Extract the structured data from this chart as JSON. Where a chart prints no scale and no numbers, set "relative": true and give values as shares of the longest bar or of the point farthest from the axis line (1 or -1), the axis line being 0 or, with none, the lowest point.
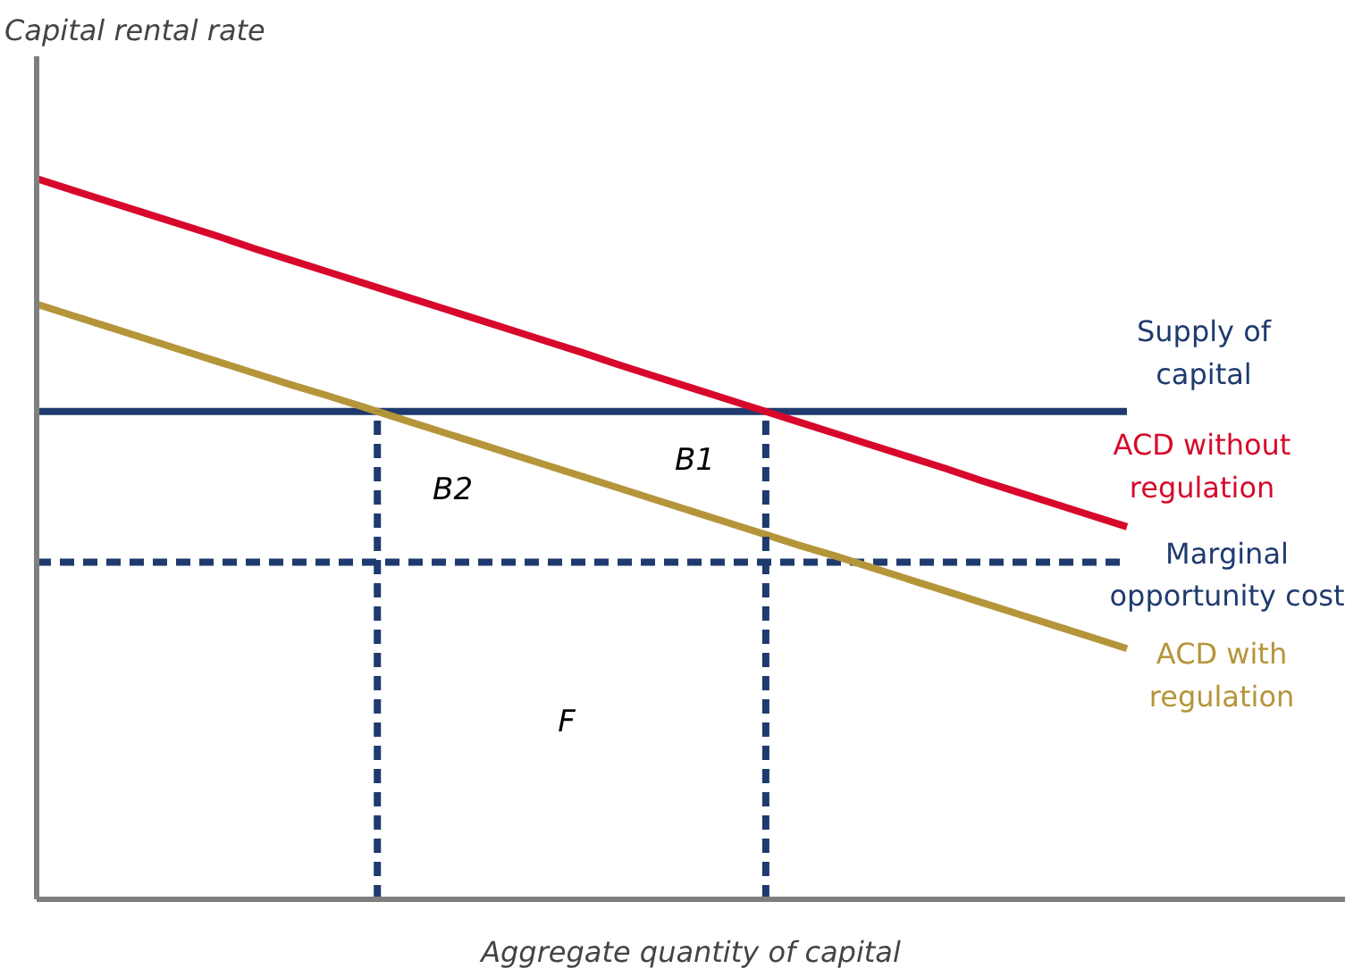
{
  "chart_data": {
    "type": "line",
    "relative": true,
    "xlabel": "Aggregate quantity of capital",
    "ylabel": "Capital rental rate",
    "categories": [
      null,
      null,
      null,
      null,
      null,
      null,
      null,
      null,
      null,
      null,
      null,
      null,
      null,
      null,
      null,
      null,
      null,
      null,
      null,
      null,
      null,
      null,
      null,
      null,
      null,
      null,
      null,
      null,
      null,
      null,
      null,
      null,
      null,
      null,
      null,
      null,
      null
    ],
    "tick_labels": false,
    "line_style": "solid",
    "series": [
      {
        "name": "Supply of\ncapital",
        "color": "#1f3a6e",
        "values": [
          0.677,
          0.677,
          0.677,
          0.677,
          0.677,
          0.677,
          0.677,
          0.677,
          0.677,
          0.677,
          0.677,
          0.677,
          0.677,
          0.677,
          0.677,
          0.677,
          0.677,
          0.677,
          0.677,
          0.677,
          0.677,
          0.677,
          0.677,
          0.677,
          0.677,
          0.677,
          0.677,
          0.677,
          0.677,
          0.677,
          0.677,
          null,
          null,
          null,
          null,
          null,
          null
        ]
      },
      {
        "name": "ACD without\nregulation",
        "color": "#d7082b",
        "values": [
          1.0,
          0.984,
          0.968,
          0.952,
          0.936,
          0.92,
          0.903,
          0.887,
          0.871,
          0.855,
          0.839,
          0.823,
          0.807,
          0.791,
          0.775,
          0.759,
          0.742,
          0.726,
          0.71,
          0.694,
          0.678,
          0.662,
          0.646,
          0.63,
          0.614,
          0.598,
          0.581,
          0.565,
          0.549,
          0.533,
          0.517,
          null,
          null,
          null,
          null,
          null,
          null
        ]
      },
      {
        "name": "Marginal\nopportunity cost",
        "color": "#1f3a6e",
        "line_style": "dashed",
        "values": [
          0.468,
          0.468,
          0.468,
          0.468,
          0.468,
          0.468,
          0.468,
          0.468,
          0.468,
          0.468,
          0.468,
          0.468,
          0.468,
          0.468,
          0.468,
          0.468,
          0.468,
          0.468,
          0.468,
          0.468,
          0.468,
          0.468,
          0.468,
          0.468,
          0.468,
          0.468,
          0.468,
          0.468,
          0.468,
          0.468,
          0.468,
          null,
          null,
          null,
          null,
          null,
          null
        ]
      },
      {
        "name": "ACD with\nregulation",
        "color": "#b5953a",
        "values": [
          0.826,
          0.81,
          0.794,
          0.778,
          0.762,
          0.746,
          0.73,
          0.714,
          0.699,
          0.683,
          0.667,
          0.651,
          0.635,
          0.619,
          0.603,
          0.587,
          0.571,
          0.555,
          0.539,
          0.523,
          0.507,
          0.491,
          0.476,
          0.46,
          0.444,
          0.428,
          0.412,
          0.396,
          0.38,
          0.364,
          0.348,
          null,
          null,
          null,
          null,
          null,
          null
        ]
      }
    ],
    "annotations": [
      "B1",
      "B2",
      "F"
    ]
  }
}
